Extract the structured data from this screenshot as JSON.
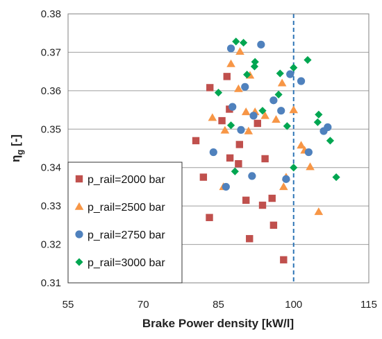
{
  "chart_data": {
    "type": "scatter",
    "xlabel": "Brake Power density [kW/l]",
    "ylabel_main": "η",
    "ylabel_sub": "g",
    "ylabel_unit": " [-]",
    "xlim": [
      55,
      115
    ],
    "ylim": [
      0.31,
      0.38
    ],
    "xticks": [
      "55",
      "70",
      "85",
      "100",
      "115"
    ],
    "yticks": [
      "0.31",
      "0.32",
      "0.33",
      "0.34",
      "0.35",
      "0.36",
      "0.37",
      "0.38"
    ],
    "grid": "horizontal",
    "legend_position": "bottom-left",
    "reference_line": {
      "x": 100,
      "style": "dashed",
      "color": "#2E75B6"
    },
    "series": [
      {
        "name": "p_rail=2000 bar",
        "marker": "square",
        "color": "#C0504D",
        "points": [
          [
            80.5,
            0.347
          ],
          [
            82,
            0.3375
          ],
          [
            83.2,
            0.327
          ],
          [
            83.3,
            0.3608
          ],
          [
            85.7,
            0.3522
          ],
          [
            86.7,
            0.3637
          ],
          [
            87.2,
            0.3552
          ],
          [
            87.3,
            0.3425
          ],
          [
            89,
            0.341
          ],
          [
            89.2,
            0.346
          ],
          [
            90.5,
            0.3315
          ],
          [
            91.2,
            0.3215
          ],
          [
            92.8,
            0.3515
          ],
          [
            93.8,
            0.3302
          ],
          [
            94.3,
            0.3423
          ],
          [
            95.7,
            0.332
          ],
          [
            96,
            0.325
          ],
          [
            98,
            0.316
          ]
        ]
      },
      {
        "name": "p_rail=2500 bar",
        "marker": "triangle",
        "color": "#F79646",
        "points": [
          [
            83.8,
            0.353
          ],
          [
            86,
            0.335
          ],
          [
            86.3,
            0.3497
          ],
          [
            87.5,
            0.367
          ],
          [
            89,
            0.3605
          ],
          [
            89.3,
            0.3702
          ],
          [
            90.5,
            0.3545
          ],
          [
            91,
            0.3495
          ],
          [
            91.3,
            0.364
          ],
          [
            92.3,
            0.3545
          ],
          [
            94.3,
            0.3535
          ],
          [
            96.5,
            0.3525
          ],
          [
            97.7,
            0.362
          ],
          [
            98,
            0.335
          ],
          [
            98.5,
            0.3375
          ],
          [
            100,
            0.355
          ],
          [
            101.5,
            0.3458
          ],
          [
            102.2,
            0.3445
          ],
          [
            103.3,
            0.3402
          ],
          [
            105,
            0.3285
          ]
        ]
      },
      {
        "name": "p_rail=2750 bar",
        "marker": "circle",
        "color": "#4F81BD",
        "points": [
          [
            84,
            0.344
          ],
          [
            86.5,
            0.335
          ],
          [
            87.5,
            0.371
          ],
          [
            87.8,
            0.3558
          ],
          [
            89.5,
            0.3498
          ],
          [
            90.3,
            0.361
          ],
          [
            91.7,
            0.3378
          ],
          [
            92,
            0.3535
          ],
          [
            93.5,
            0.372
          ],
          [
            96,
            0.3575
          ],
          [
            97.5,
            0.3548
          ],
          [
            98.5,
            0.337
          ],
          [
            99.3,
            0.3643
          ],
          [
            101.5,
            0.3625
          ],
          [
            103,
            0.344
          ],
          [
            106,
            0.3495
          ],
          [
            106.8,
            0.3505
          ]
        ]
      },
      {
        "name": "p_rail=3000 bar",
        "marker": "diamond",
        "color": "#00A651",
        "points": [
          [
            85,
            0.3595
          ],
          [
            87.5,
            0.351
          ],
          [
            88.3,
            0.339
          ],
          [
            88.5,
            0.3728
          ],
          [
            90,
            0.3725
          ],
          [
            90.7,
            0.3642
          ],
          [
            92.2,
            0.3663
          ],
          [
            92.3,
            0.3675
          ],
          [
            93.8,
            0.3548
          ],
          [
            97,
            0.359
          ],
          [
            97.3,
            0.3645
          ],
          [
            98.7,
            0.3508
          ],
          [
            100,
            0.366
          ],
          [
            100,
            0.34
          ],
          [
            102.8,
            0.368
          ],
          [
            104.8,
            0.3518
          ],
          [
            105,
            0.3538
          ],
          [
            107.3,
            0.347
          ],
          [
            108.5,
            0.3375
          ]
        ]
      }
    ]
  }
}
